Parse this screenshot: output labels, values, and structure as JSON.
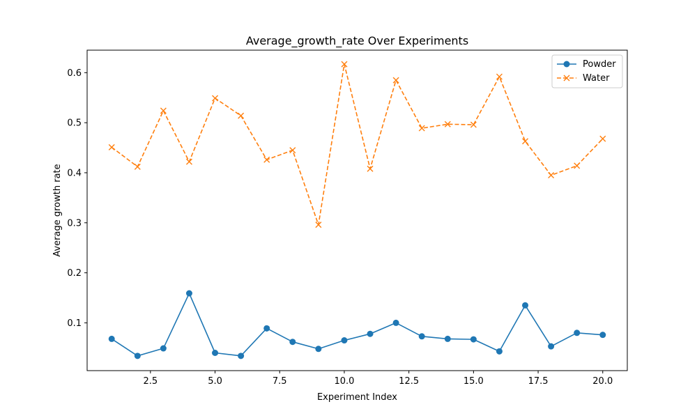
{
  "chart_data": {
    "type": "line",
    "title": "Average_growth_rate Over Experiments",
    "xlabel": "Experiment Index",
    "ylabel": "Average growth rate",
    "x": [
      1,
      2,
      3,
      4,
      5,
      6,
      7,
      8,
      9,
      10,
      11,
      12,
      13,
      14,
      15,
      16,
      17,
      18,
      19,
      20
    ],
    "xlim": [
      0.05,
      20.95
    ],
    "ylim": [
      0.0045,
      0.645
    ],
    "xticks": [
      2.5,
      5.0,
      7.5,
      10.0,
      12.5,
      15.0,
      17.5,
      20.0
    ],
    "xtick_labels": [
      "2.5",
      "5.0",
      "7.5",
      "10.0",
      "12.5",
      "15.0",
      "17.5",
      "20.0"
    ],
    "yticks": [
      0.1,
      0.2,
      0.3,
      0.4,
      0.5,
      0.6
    ],
    "ytick_labels": [
      "0.1",
      "0.2",
      "0.3",
      "0.4",
      "0.5",
      "0.6"
    ],
    "grid": false,
    "legend_position": "top-right",
    "series": [
      {
        "name": "Powder",
        "color": "#1f77b4",
        "line_style": "solid",
        "marker": "circle",
        "values": [
          0.068,
          0.034,
          0.049,
          0.159,
          0.04,
          0.034,
          0.089,
          0.062,
          0.048,
          0.065,
          0.078,
          0.1,
          0.073,
          0.068,
          0.067,
          0.043,
          0.135,
          0.053,
          0.08,
          0.076
        ]
      },
      {
        "name": "Water",
        "color": "#ff7f0e",
        "line_style": "dashed",
        "marker": "x",
        "values": [
          0.451,
          0.412,
          0.524,
          0.422,
          0.549,
          0.514,
          0.426,
          0.445,
          0.296,
          0.617,
          0.408,
          0.585,
          0.489,
          0.497,
          0.496,
          0.592,
          0.463,
          0.395,
          0.414,
          0.468
        ]
      }
    ]
  }
}
